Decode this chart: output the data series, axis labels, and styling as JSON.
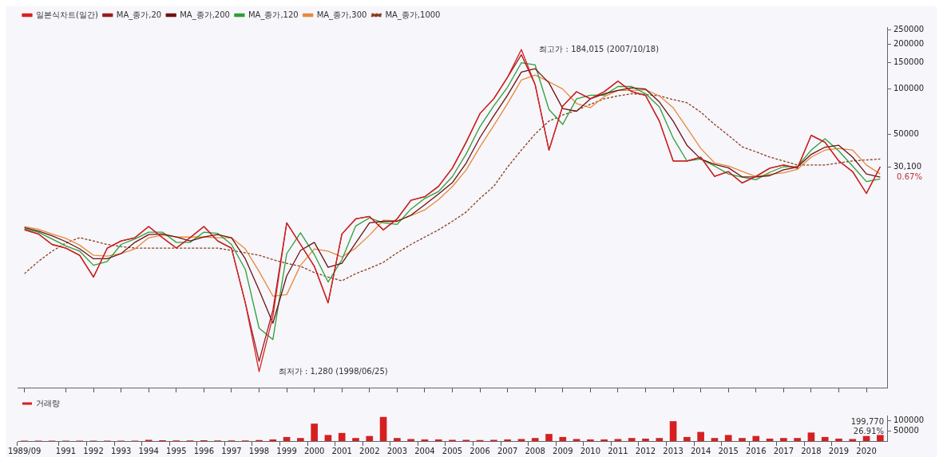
{
  "chart_data": [
    {
      "type": "line",
      "log": "y",
      "ylim": [
        1000,
        260000
      ],
      "yticks": [
        {
          "value": 30100,
          "label": "30,100"
        },
        50000,
        100000,
        150000,
        200000,
        250000
      ],
      "tick_labels": "y",
      "legend": "top left",
      "marker": "none",
      "grid": false,
      "categories": [
        "1989/09",
        null,
        null,
        "1991",
        null,
        "1992",
        null,
        "1993",
        null,
        "1994",
        null,
        "1995",
        null,
        "1996",
        null,
        "1997",
        null,
        "1998",
        null,
        "1999",
        null,
        "2000",
        null,
        "2001",
        null,
        "2002",
        null,
        "2003",
        null,
        "2004",
        null,
        "2005",
        null,
        "2006",
        null,
        "2007",
        null,
        "2008",
        null,
        "2009",
        null,
        "2010",
        null,
        "2011",
        null,
        "2012",
        null,
        "2013",
        null,
        "2014",
        null,
        "2015",
        null,
        "2016",
        null,
        "2017",
        null,
        "2018",
        null,
        "2019",
        null,
        "2020",
        null
      ],
      "series": [
        {
          "name": "일본식차트(일간)",
          "color": "#d62020",
          "values": [
            11400,
            10700,
            9100,
            8600,
            7700,
            5500,
            8600,
            9600,
            10100,
            12000,
            10100,
            8600,
            10100,
            12000,
            9600,
            8600,
            3700,
            1280,
            3000,
            12700,
            9100,
            6500,
            3700,
            10700,
            13500,
            14000,
            11400,
            13500,
            18000,
            19000,
            22300,
            29500,
            44000,
            68500,
            86000,
            120000,
            184015,
            107000,
            39000,
            77000,
            96000,
            86000,
            96000,
            113000,
            96000,
            90600,
            61000,
            33000,
            33000,
            35000,
            26000,
            28000,
            23500,
            26000,
            29500,
            31000,
            29500,
            49000,
            44000,
            33000,
            28000,
            20000,
            30100
          ]
        },
        {
          "name": "MA_종가,20",
          "color": "#9b1b1b",
          "values": [
            11400,
            10700,
            9100,
            8600,
            7700,
            5500,
            8600,
            9600,
            10100,
            12000,
            10100,
            8600,
            10100,
            12000,
            9600,
            8600,
            3700,
            1500,
            3300,
            12700,
            9100,
            6500,
            3700,
            10700,
            13500,
            14000,
            11400,
            13500,
            18000,
            19000,
            22300,
            29500,
            44000,
            68500,
            86000,
            120000,
            170000,
            107000,
            39000,
            77000,
            96000,
            86000,
            96000,
            113000,
            96000,
            90600,
            61000,
            33000,
            33000,
            35000,
            26000,
            28000,
            23500,
            26000,
            29500,
            31000,
            29500,
            49000,
            44000,
            33000,
            28000,
            20000,
            30100
          ]
        },
        {
          "name": "MA_종가,200",
          "color": "#6e1212",
          "values": [
            11800,
            11200,
            10400,
            9500,
            8500,
            7300,
            7300,
            7900,
            9400,
            10600,
            10700,
            10200,
            9600,
            10200,
            10600,
            10100,
            7300,
            4500,
            2700,
            5600,
            8300,
            9400,
            6400,
            6800,
            9300,
            12700,
            13000,
            13000,
            14300,
            16800,
            19800,
            23600,
            31900,
            47300,
            66000,
            91000,
            130000,
            137000,
            110000,
            74000,
            71000,
            86000,
            93000,
            98000,
            102000,
            100000,
            82000,
            61000,
            42000,
            34000,
            31300,
            29700,
            25800,
            25800,
            26300,
            28800,
            30000,
            36500,
            40800,
            42000,
            35000,
            27000,
            25700
          ]
        },
        {
          "name": "MA_종가,120",
          "color": "#2e9e3a",
          "values": [
            11600,
            11000,
            9900,
            8900,
            8200,
            6600,
            7000,
            9100,
            9900,
            11000,
            11000,
            9400,
            9400,
            11000,
            10800,
            9100,
            6200,
            2500,
            2100,
            7900,
            10900,
            7800,
            5100,
            7200,
            12100,
            13700,
            12700,
            12400,
            15700,
            18500,
            20600,
            25900,
            36700,
            56000,
            77000,
            103000,
            150000,
            145000,
            73000,
            58000,
            86000,
            91000,
            91000,
            104000,
            104000,
            93000,
            76000,
            47000,
            33000,
            34000,
            30500,
            27000,
            25700,
            24700,
            27700,
            30200,
            30200,
            39000,
            46500,
            38500,
            30500,
            24000,
            25000
          ]
        },
        {
          "name": "MA_종가,300",
          "color": "#e8893c",
          "values": [
            12000,
            11500,
            10700,
            10000,
            9000,
            7700,
            7600,
            7900,
            8500,
            10100,
            10500,
            10200,
            10200,
            10200,
            10100,
            10100,
            8500,
            6000,
            4100,
            4200,
            6600,
            8500,
            8200,
            7500,
            8600,
            10500,
            13200,
            13100,
            14200,
            15500,
            18200,
            22200,
            28700,
            41000,
            57000,
            80000,
            115000,
            124000,
            112000,
            100000,
            80000,
            75000,
            89000,
            98000,
            98000,
            99000,
            90000,
            75000,
            55000,
            40000,
            32000,
            30500,
            28100,
            25900,
            26800,
            27500,
            29000,
            35000,
            39000,
            40000,
            39000,
            31000,
            27000
          ]
        },
        {
          "name": "MA_종가,1000",
          "color": "#8b3a1a",
          "line_style": "dashed",
          "values": [
            5800,
            7000,
            8200,
            9300,
            10100,
            9600,
            9100,
            8800,
            8600,
            8600,
            8600,
            8600,
            8600,
            8600,
            8600,
            8300,
            8000,
            7700,
            7200,
            6800,
            6500,
            5900,
            5500,
            5200,
            5800,
            6300,
            6900,
            8000,
            9100,
            10200,
            11400,
            13000,
            15000,
            18500,
            22300,
            30000,
            39000,
            50000,
            61000,
            67000,
            72000,
            79000,
            86000,
            90000,
            93000,
            92000,
            90000,
            85000,
            81000,
            70000,
            58000,
            49000,
            41000,
            38000,
            35000,
            33000,
            31000,
            31000,
            31000,
            32000,
            33000,
            33500,
            34000
          ]
        }
      ],
      "annotations": [
        "최고가 : 184,015 (2007/10/18)",
        "최저가 : 1,280 (1998/06/25)",
        "0.67%"
      ]
    },
    {
      "type": "bar",
      "ylim": [
        0,
        126000
      ],
      "yticks": [
        50000,
        100000
      ],
      "legend": "top left",
      "grid": false,
      "categories": [
        "1989/09",
        null,
        null,
        "1991",
        null,
        "1992",
        null,
        "1993",
        null,
        "1994",
        null,
        "1995",
        null,
        "1996",
        null,
        "1997",
        null,
        "1998",
        null,
        "1999",
        null,
        "2000",
        null,
        "2001",
        null,
        "2002",
        null,
        "2003",
        null,
        "2004",
        null,
        "2005",
        null,
        "2006",
        null,
        "2007",
        null,
        "2008",
        null,
        "2009",
        null,
        "2010",
        null,
        "2011",
        null,
        "2012",
        null,
        "2013",
        null,
        "2014",
        null,
        "2015",
        null,
        "2016",
        null,
        "2017",
        null,
        "2018",
        null,
        "2019",
        null,
        "2020",
        null
      ],
      "series": [
        {
          "name": "거래량",
          "color": "#d62020",
          "values": [
            2000,
            2000,
            2000,
            2000,
            2000,
            2000,
            2000,
            2000,
            2000,
            6000,
            4000,
            3000,
            3000,
            4000,
            3000,
            3000,
            3000,
            5000,
            8000,
            20000,
            15000,
            86000,
            30000,
            40000,
            15000,
            25000,
            119000,
            15000,
            10000,
            8000,
            8000,
            6000,
            6000,
            5000,
            6000,
            8000,
            10000,
            15000,
            35000,
            20000,
            10000,
            8000,
            8000,
            10000,
            15000,
            12000,
            15000,
            98000,
            20000,
            45000,
            15000,
            30000,
            15000,
            25000,
            12000,
            15000,
            15000,
            42000,
            20000,
            12000,
            10000,
            25000,
            30000
          ]
        }
      ],
      "annotations": [
        "199,770",
        "26.91%"
      ]
    }
  ]
}
